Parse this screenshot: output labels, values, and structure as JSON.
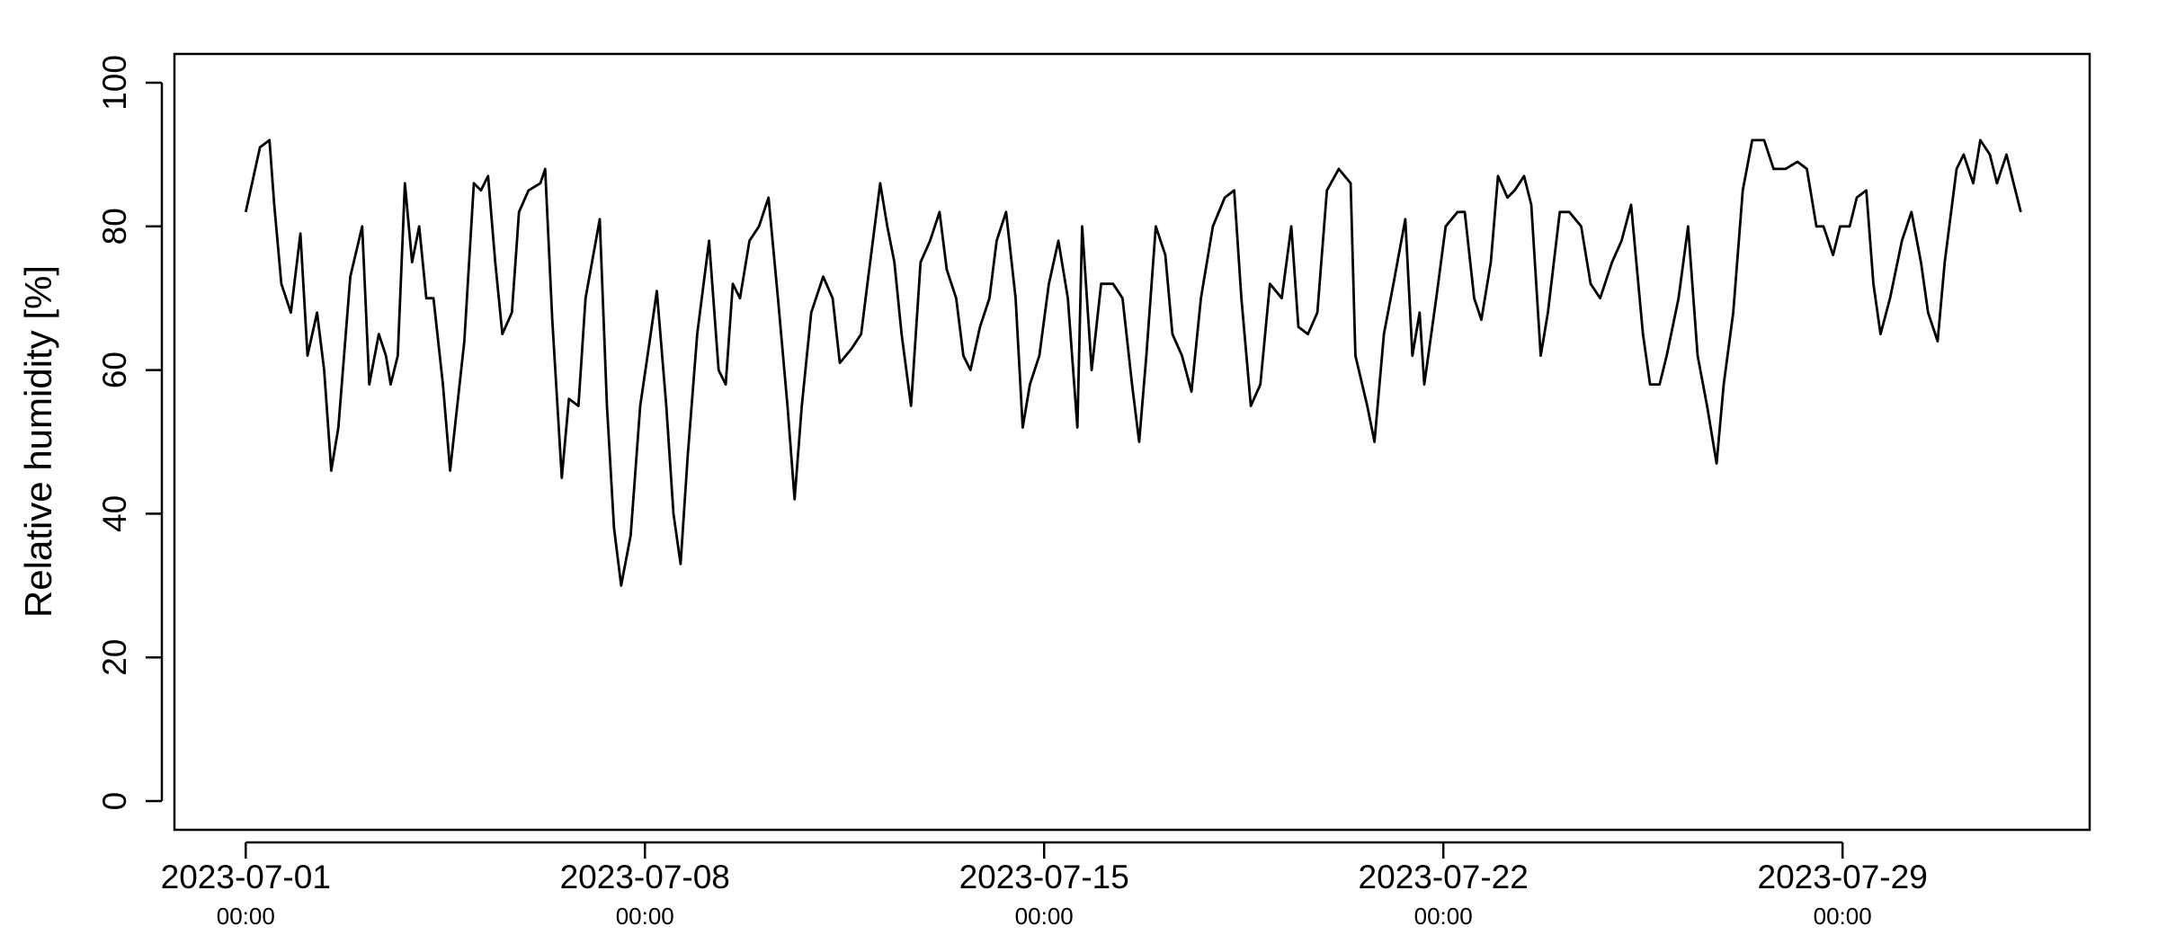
{
  "chart_data": {
    "type": "line",
    "ylabel": "Relative humidity [%]",
    "xlim": [
      "2023-06-29 18:00",
      "2023-08-02 08:00"
    ],
    "ylim": [
      -4,
      104
    ],
    "yticks": [
      0,
      20,
      40,
      60,
      80,
      100
    ],
    "xticks": [
      {
        "value": "2023-07-01 00:00",
        "label": "2023-07-01",
        "time": "00:00"
      },
      {
        "value": "2023-07-08 00:00",
        "label": "2023-07-08",
        "time": "00:00"
      },
      {
        "value": "2023-07-15 00:00",
        "label": "2023-07-15",
        "time": "00:00"
      },
      {
        "value": "2023-07-22 00:00",
        "label": "2023-07-22",
        "time": "00:00"
      },
      {
        "value": "2023-07-29 00:00",
        "label": "2023-07-29",
        "time": "00:00"
      }
    ],
    "grid": false,
    "series": [
      {
        "name": "Relative humidity",
        "color": "#000000",
        "x": [
          "2023-07-01 00:00",
          "2023-07-01 06:00",
          "2023-07-01 10:00",
          "2023-07-01 12:00",
          "2023-07-01 15:00",
          "2023-07-01 19:00",
          "2023-07-01 23:00",
          "2023-07-02 02:00",
          "2023-07-02 06:00",
          "2023-07-02 09:00",
          "2023-07-02 12:00",
          "2023-07-02 15:00",
          "2023-07-02 20:00",
          "2023-07-03 01:00",
          "2023-07-03 04:00",
          "2023-07-03 08:00",
          "2023-07-03 11:00",
          "2023-07-03 13:00",
          "2023-07-03 16:00",
          "2023-07-03 19:00",
          "2023-07-03 22:00",
          "2023-07-04 01:00",
          "2023-07-04 04:00",
          "2023-07-04 07:00",
          "2023-07-04 11:00",
          "2023-07-04 14:00",
          "2023-07-04 17:00",
          "2023-07-04 20:00",
          "2023-07-05 00:00",
          "2023-07-05 03:00",
          "2023-07-05 06:00",
          "2023-07-05 09:00",
          "2023-07-05 12:00",
          "2023-07-05 16:00",
          "2023-07-05 19:00",
          "2023-07-05 23:00",
          "2023-07-06 04:00",
          "2023-07-06 06:00",
          "2023-07-06 09:00",
          "2023-07-06 13:00",
          "2023-07-06 16:00",
          "2023-07-06 20:00",
          "2023-07-06 23:00",
          "2023-07-07 05:00",
          "2023-07-07 08:00",
          "2023-07-07 11:00",
          "2023-07-07 14:00",
          "2023-07-07 18:00",
          "2023-07-07 22:00",
          "2023-07-08 02:00",
          "2023-07-08 05:00",
          "2023-07-08 09:00",
          "2023-07-08 12:00",
          "2023-07-08 15:00",
          "2023-07-08 18:00",
          "2023-07-08 22:00",
          "2023-07-09 03:00",
          "2023-07-09 07:00",
          "2023-07-09 10:00",
          "2023-07-09 13:00",
          "2023-07-09 16:00",
          "2023-07-09 20:00",
          "2023-07-10 00:00",
          "2023-07-10 04:00",
          "2023-07-10 08:00",
          "2023-07-10 12:00",
          "2023-07-10 15:00",
          "2023-07-10 18:00",
          "2023-07-10 22:00",
          "2023-07-11 03:00",
          "2023-07-11 07:00",
          "2023-07-11 10:00",
          "2023-07-11 15:00",
          "2023-07-11 19:00",
          "2023-07-11 22:00",
          "2023-07-12 03:00",
          "2023-07-12 06:00",
          "2023-07-12 09:00",
          "2023-07-12 12:00",
          "2023-07-12 16:00",
          "2023-07-12 20:00",
          "2023-07-13 00:00",
          "2023-07-13 04:00",
          "2023-07-13 07:00",
          "2023-07-13 11:00",
          "2023-07-13 14:00",
          "2023-07-13 17:00",
          "2023-07-13 21:00",
          "2023-07-14 01:00",
          "2023-07-14 04:00",
          "2023-07-14 08:00",
          "2023-07-14 12:00",
          "2023-07-14 15:00",
          "2023-07-14 18:00",
          "2023-07-14 22:00",
          "2023-07-15 02:00",
          "2023-07-15 06:00",
          "2023-07-15 10:00",
          "2023-07-15 14:00",
          "2023-07-15 16:00",
          "2023-07-15 20:00",
          "2023-07-16 00:00",
          "2023-07-16 05:00",
          "2023-07-16 09:00",
          "2023-07-16 13:00",
          "2023-07-16 16:00",
          "2023-07-16 19:00",
          "2023-07-16 23:00",
          "2023-07-17 03:00",
          "2023-07-17 06:00",
          "2023-07-17 10:00",
          "2023-07-17 14:00",
          "2023-07-17 18:00",
          "2023-07-17 23:00",
          "2023-07-18 04:00",
          "2023-07-18 08:00",
          "2023-07-18 11:00",
          "2023-07-18 15:00",
          "2023-07-18 19:00",
          "2023-07-18 23:00",
          "2023-07-19 04:00",
          "2023-07-19 08:00",
          "2023-07-19 11:00",
          "2023-07-19 15:00",
          "2023-07-19 19:00",
          "2023-07-19 23:00",
          "2023-07-20 04:00",
          "2023-07-20 09:00",
          "2023-07-20 11:00",
          "2023-07-20 16:00",
          "2023-07-20 19:00",
          "2023-07-20 23:00",
          "2023-07-21 03:00",
          "2023-07-21 08:00",
          "2023-07-21 11:00",
          "2023-07-21 14:00",
          "2023-07-21 16:00",
          "2023-07-21 21:00",
          "2023-07-22 01:00",
          "2023-07-22 06:00",
          "2023-07-22 09:00",
          "2023-07-22 13:00",
          "2023-07-22 16:00",
          "2023-07-22 20:00",
          "2023-07-22 23:00",
          "2023-07-23 03:00",
          "2023-07-23 06:00",
          "2023-07-23 10:00",
          "2023-07-23 13:00",
          "2023-07-23 17:00",
          "2023-07-23 20:00",
          "2023-07-24 01:00",
          "2023-07-24 05:00",
          "2023-07-24 10:00",
          "2023-07-24 14:00",
          "2023-07-24 18:00",
          "2023-07-24 23:00",
          "2023-07-25 03:00",
          "2023-07-25 07:00",
          "2023-07-25 12:00",
          "2023-07-25 15:00",
          "2023-07-25 19:00",
          "2023-07-25 22:00",
          "2023-07-26 03:00",
          "2023-07-26 07:00",
          "2023-07-26 11:00",
          "2023-07-26 15:00",
          "2023-07-26 19:00",
          "2023-07-26 22:00",
          "2023-07-27 02:00",
          "2023-07-27 06:00",
          "2023-07-27 10:00",
          "2023-07-27 15:00",
          "2023-07-27 19:00",
          "2023-07-28 00:00",
          "2023-07-28 05:00",
          "2023-07-28 09:00",
          "2023-07-28 13:00",
          "2023-07-28 16:00",
          "2023-07-28 20:00",
          "2023-07-28 23:00",
          "2023-07-29 03:00",
          "2023-07-29 06:00",
          "2023-07-29 10:00",
          "2023-07-29 13:00",
          "2023-07-29 16:00",
          "2023-07-29 20:00",
          "2023-07-30 01:00",
          "2023-07-30 05:00",
          "2023-07-30 09:00",
          "2023-07-30 12:00",
          "2023-07-30 16:00",
          "2023-07-30 19:00",
          "2023-07-31 00:00",
          "2023-07-31 03:00",
          "2023-07-31 07:00",
          "2023-07-31 10:00",
          "2023-07-31 14:00",
          "2023-07-31 17:00",
          "2023-07-31 21:00",
          "2023-08-01 00:00",
          "2023-08-01 03:00"
        ],
        "values": [
          82,
          91,
          92,
          83,
          72,
          68,
          79,
          62,
          68,
          60,
          46,
          52,
          73,
          80,
          58,
          65,
          62,
          58,
          62,
          86,
          75,
          80,
          70,
          70,
          58,
          46,
          55,
          64,
          86,
          85,
          87,
          75,
          65,
          68,
          82,
          85,
          86,
          88,
          67,
          45,
          56,
          55,
          70,
          81,
          55,
          38,
          30,
          37,
          55,
          64,
          71,
          55,
          40,
          33,
          48,
          65,
          78,
          60,
          58,
          72,
          70,
          78,
          80,
          84,
          70,
          55,
          42,
          55,
          68,
          73,
          70,
          61,
          63,
          65,
          73,
          86,
          80,
          75,
          65,
          55,
          75,
          78,
          82,
          74,
          70,
          62,
          60,
          66,
          70,
          78,
          82,
          70,
          52,
          58,
          62,
          72,
          78,
          70,
          52,
          80,
          60,
          72,
          72,
          70,
          58,
          50,
          62,
          80,
          76,
          65,
          62,
          57,
          70,
          80,
          84,
          85,
          70,
          55,
          58,
          72,
          70,
          80,
          66,
          65,
          68,
          85,
          88,
          86,
          62,
          55,
          50,
          65,
          72,
          81,
          62,
          68,
          58,
          70,
          80,
          82,
          82,
          70,
          67,
          75,
          87,
          84,
          85,
          87,
          83,
          62,
          68,
          82,
          82,
          80,
          72,
          70,
          75,
          78,
          83,
          65,
          58,
          58,
          62,
          70,
          80,
          62,
          55,
          47,
          58,
          68,
          85,
          92,
          92,
          88,
          88,
          89,
          88,
          80,
          80,
          76,
          80,
          80,
          84,
          85,
          72,
          65,
          70,
          78,
          82,
          75,
          68,
          64,
          75,
          88,
          90,
          86,
          92,
          90,
          86,
          90,
          86,
          82
        ]
      }
    ]
  }
}
